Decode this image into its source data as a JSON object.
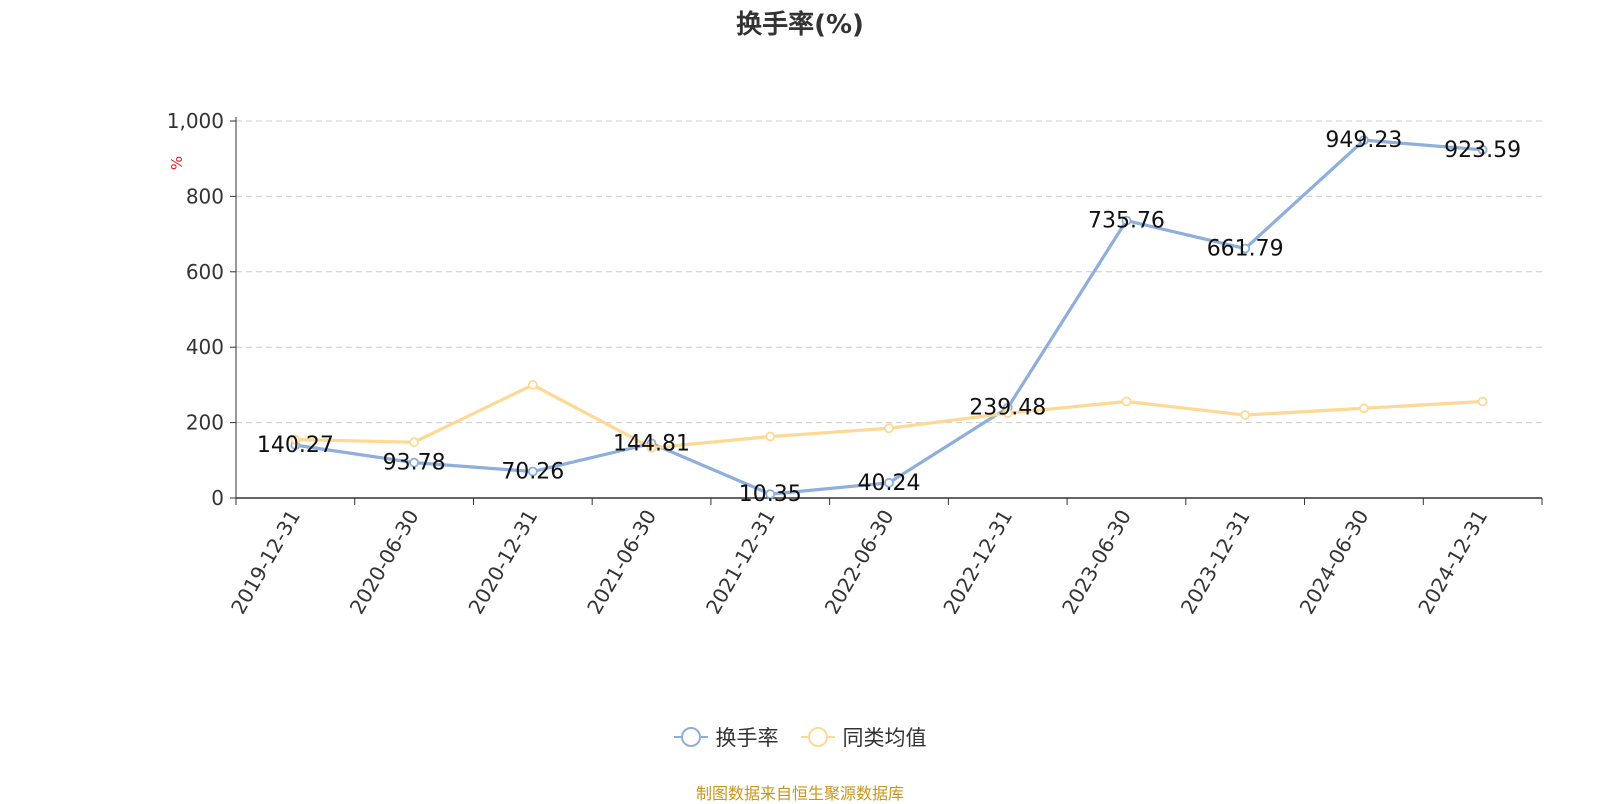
{
  "chart_data": {
    "type": "line",
    "title": "换手率(%)",
    "ylabel": "%",
    "categories": [
      "2019-12-31",
      "2020-06-30",
      "2020-12-31",
      "2021-06-30",
      "2021-12-31",
      "2022-06-30",
      "2022-12-31",
      "2023-06-30",
      "2023-12-31",
      "2024-06-30",
      "2024-12-31"
    ],
    "series": [
      {
        "name": "换手率",
        "color": "#8eaedb",
        "values": [
          140.27,
          93.78,
          70.26,
          144.81,
          10.35,
          40.24,
          239.48,
          735.76,
          661.79,
          949.23,
          923.59
        ],
        "labels": true
      },
      {
        "name": "同类均值",
        "color": "#fdd995",
        "values": [
          155,
          148,
          300,
          133,
          163,
          185,
          225,
          256,
          220,
          238,
          256
        ],
        "labels": false
      }
    ],
    "yticks": [
      "0",
      "200",
      "400",
      "600",
      "800",
      "1,000"
    ],
    "ylim": [
      0,
      1000
    ],
    "grid": true,
    "legend_position": "bottom"
  },
  "source_note": "制图数据来自恒生聚源数据库"
}
